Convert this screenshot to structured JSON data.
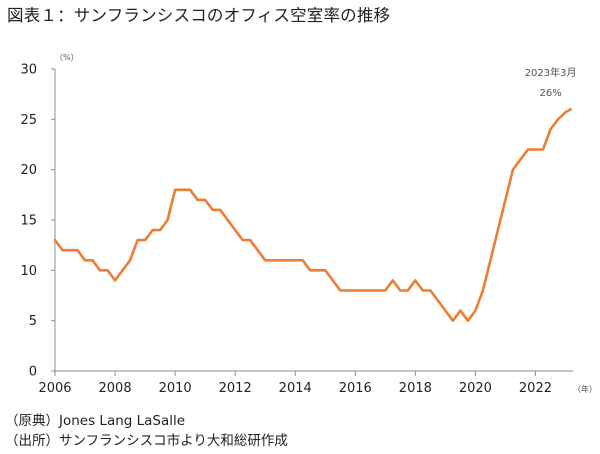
{
  "title": "図表１：サンフランシスコのオフィス空室率の推移",
  "notes": [
    "（原典）Jones Lang LaSalle",
    "（出所）サンフランシスコ市より大和総研作成"
  ],
  "colors": {
    "line": "#ED7D31",
    "axis": "#8C8C8C",
    "text": "#222222"
  },
  "chart_data": {
    "type": "line",
    "title": "図表１：サンフランシスコのオフィス空室率の推移",
    "xlabel": "（年）",
    "ylabel": "（%）",
    "xlim": [
      2006,
      2023.25
    ],
    "ylim": [
      0,
      30
    ],
    "x_ticks": [
      "2006",
      "2008",
      "2010",
      "2012",
      "2014",
      "2016",
      "2018",
      "2020",
      "2022"
    ],
    "y_ticks": [
      "0",
      "5",
      "10",
      "15",
      "20",
      "25",
      "30"
    ],
    "grid": false,
    "legend": "none",
    "annotation": {
      "line1": "2023年3月",
      "line2": "26%",
      "x": 2023.17,
      "y": 26
    },
    "series": [
      {
        "x": [
          2006.0,
          2006.25,
          2006.5,
          2006.75,
          2007.0,
          2007.25,
          2007.5,
          2007.75,
          2008.0,
          2008.25,
          2008.5,
          2008.75,
          2009.0,
          2009.25,
          2009.5,
          2009.75,
          2010.0,
          2010.25,
          2010.5,
          2010.75,
          2011.0,
          2011.25,
          2011.5,
          2011.75,
          2012.0,
          2012.25,
          2012.5,
          2012.75,
          2013.0,
          2013.25,
          2013.5,
          2013.75,
          2014.0,
          2014.25,
          2014.5,
          2014.75,
          2015.0,
          2015.25,
          2015.5,
          2015.75,
          2016.0,
          2016.25,
          2016.5,
          2016.75,
          2017.0,
          2017.25,
          2017.5,
          2017.75,
          2018.0,
          2018.25,
          2018.5,
          2018.75,
          2019.0,
          2019.25,
          2019.5,
          2019.75,
          2020.0,
          2020.25,
          2020.5,
          2020.75,
          2021.0,
          2021.25,
          2021.5,
          2021.75,
          2022.0,
          2022.25,
          2022.5,
          2022.75,
          2023.0,
          2023.17
        ],
        "y": [
          13,
          12,
          12,
          12,
          11,
          11,
          10,
          10,
          9,
          10,
          11,
          13,
          13,
          14,
          14,
          15,
          18,
          18,
          18,
          17,
          17,
          16,
          16,
          15,
          14,
          13,
          13,
          12,
          11,
          11,
          11,
          11,
          11,
          11,
          10,
          10,
          10,
          9,
          8,
          8,
          8,
          8,
          8,
          8,
          8,
          9,
          8,
          8,
          9,
          8,
          8,
          7,
          6,
          5,
          6,
          5,
          6,
          8,
          11,
          14,
          17,
          20,
          21,
          22,
          22,
          22,
          24,
          25,
          25.7,
          26
        ]
      }
    ]
  }
}
